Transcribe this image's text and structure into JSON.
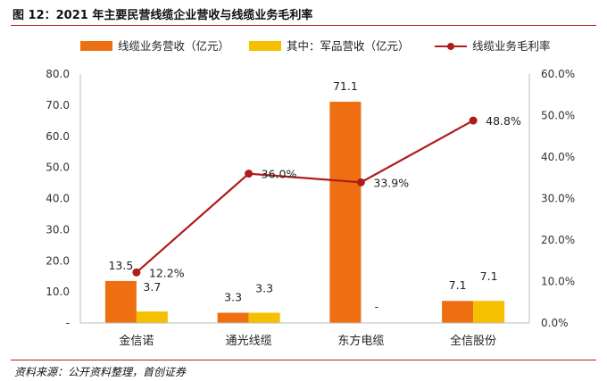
{
  "figure": {
    "title": "图 12：2021 年主要民营线缆企业营收与线缆业务毛利率",
    "source": "资料来源：公开资料整理，首创证券"
  },
  "chart_data": {
    "type": "bar",
    "categories": [
      "金信诺",
      "通光线缆",
      "东方电缆",
      "全信股份"
    ],
    "series": [
      {
        "name": "线缆业务营收（亿元）",
        "kind": "bar",
        "axis": "left",
        "color": "#ee6f12",
        "values": [
          13.5,
          3.3,
          71.1,
          7.1
        ],
        "labels": [
          "13.5",
          "3.3",
          "71.1",
          "7.1"
        ]
      },
      {
        "name": "其中：军品营收（亿元）",
        "kind": "bar",
        "axis": "left",
        "color": "#f5c000",
        "values": [
          3.7,
          3.3,
          null,
          7.1
        ],
        "labels": [
          "3.7",
          "3.3",
          "-",
          "7.1"
        ]
      },
      {
        "name": "线缆业务毛利率",
        "kind": "line",
        "axis": "right",
        "color": "#b01c1c",
        "values": [
          12.2,
          36.0,
          33.9,
          48.8
        ],
        "labels": [
          "12.2%",
          "36.0%",
          "33.9%",
          "48.8%"
        ]
      }
    ],
    "y_left": {
      "ylim": [
        0,
        80
      ],
      "ticks": [
        0,
        10,
        20,
        30,
        40,
        50,
        60,
        70,
        80
      ],
      "tick_labels": [
        "-",
        "10.0",
        "20.0",
        "30.0",
        "40.0",
        "50.0",
        "60.0",
        "70.0",
        "80.0"
      ]
    },
    "y_right": {
      "ylim": [
        0,
        60
      ],
      "ticks": [
        0,
        10,
        20,
        30,
        40,
        50,
        60
      ],
      "tick_labels": [
        "0.0%",
        "10.0%",
        "20.0%",
        "30.0%",
        "40.0%",
        "50.0%",
        "60.0%"
      ]
    },
    "grid": false,
    "legend": "top"
  }
}
